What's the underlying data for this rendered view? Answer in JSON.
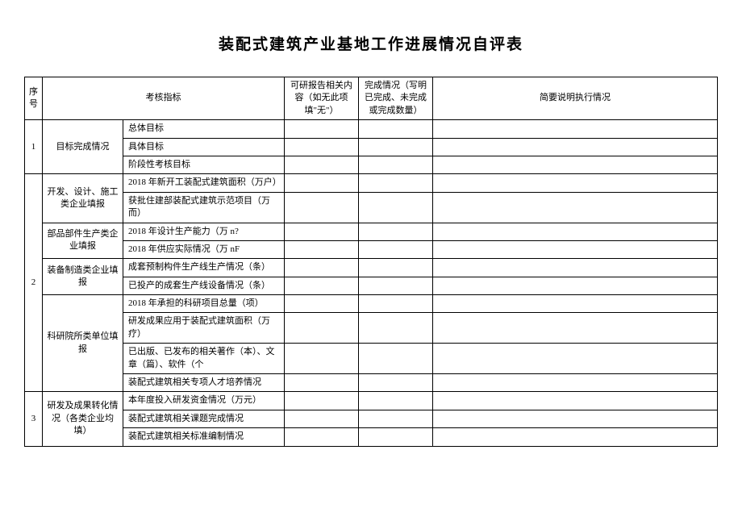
{
  "title": "装配式建筑产业基地工作进展情况自评表",
  "headers": {
    "seq": "序号",
    "indicator": "考核指标",
    "research": "可研报告相关内容（如无此项填\"无\"）",
    "completion": "完成情况（写明已完成、未完成或完成数量）",
    "desc": "简要说明执行情况"
  },
  "rows": {
    "r1": {
      "seq": "1",
      "cat": "目标完成情况",
      "i1": "总体目标",
      "i2": "具体目标",
      "i3": "阶段性考核目标"
    },
    "r2": {
      "seq": "2",
      "cat1": "开发、设计、施工类企业填报",
      "i1": "2018 年新开工装配式建筑面积（万户）",
      "i2": "获批住建部装配式建筑示范项目（万而）",
      "cat2": "部品部件生产类企业填报",
      "i3": "2018 年设计生产能力（万 n?",
      "i4": "2018 年供应实际情况（万 nF",
      "cat3": "装备制造类企业填报",
      "i5": "成套预制构件生产线生产情况（条）",
      "i6": "已投产的成套生产线设备情况（条）",
      "cat4": "科研院所类单位填报",
      "i7": "2018 年承担的科研项目总量（项）",
      "i8": "研发成果应用于装配式建筑面积（万疗）",
      "i9": "已出版、已发布的相关著作（本）、文章（篇）、软件（个",
      "i10": "装配式建筑相关专项人才培养情况"
    },
    "r3": {
      "seq": "3",
      "cat": "研发及成果转化情况（各类企业均填）",
      "i1": "本年度投入研发资金情况（万元）",
      "i2": "装配式建筑相关课题完成情况",
      "i3": "装配式建筑相关标准编制情况"
    }
  }
}
